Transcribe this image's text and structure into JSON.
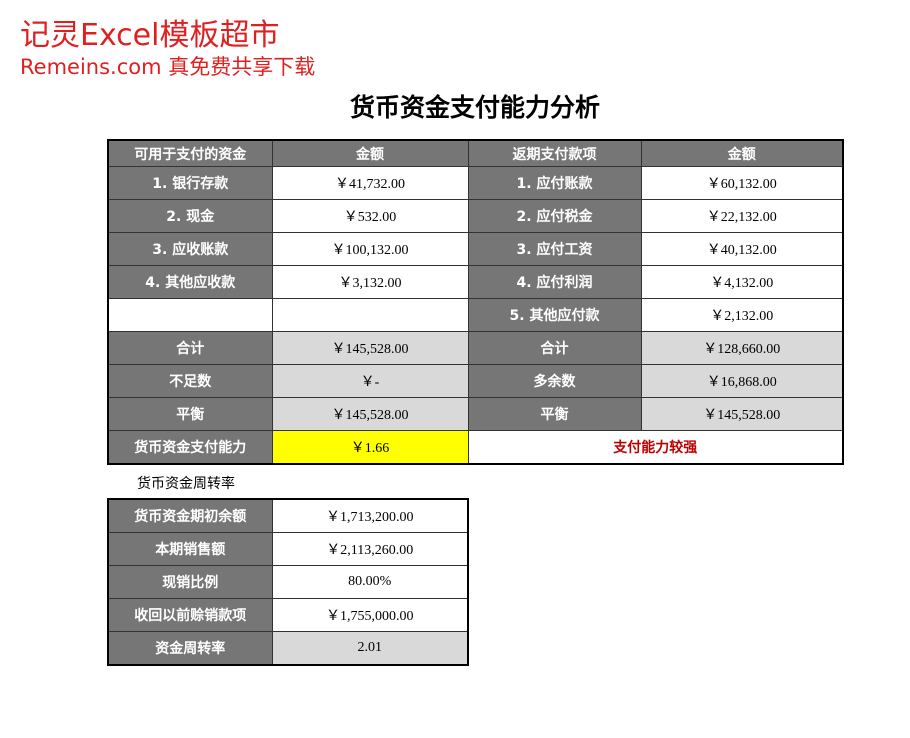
{
  "watermark": {
    "line1": "记灵Excel模板超市",
    "line2": "Remeins.com 真免费共享下载"
  },
  "title": "货币资金支付能力分析",
  "table1": {
    "header": [
      "可用于支付的资金",
      "金额",
      "返期支付款项",
      "金额"
    ],
    "rows": [
      [
        "1. 银行存款",
        "￥41,732.00",
        "1. 应付账款",
        "￥60,132.00"
      ],
      [
        "2. 现金",
        "￥532.00",
        "2. 应付税金",
        "￥22,132.00"
      ],
      [
        "3. 应收账款",
        "￥100,132.00",
        "3. 应付工资",
        "￥40,132.00"
      ],
      [
        "4. 其他应收款",
        "￥3,132.00",
        "4. 应付利润",
        "￥4,132.00"
      ],
      [
        null,
        null,
        "5. 其他应付款",
        "￥2,132.00"
      ],
      [
        "合计",
        "￥145,528.00",
        "合计",
        "￥128,660.00"
      ],
      [
        "不足数",
        "￥-",
        "多余数",
        "￥16,868.00"
      ],
      [
        "平衡",
        "￥145,528.00",
        "平衡",
        "￥145,528.00"
      ],
      [
        "货币资金支付能力",
        "￥1.66",
        "支付能力较强"
      ]
    ]
  },
  "section2_label": "货币资金周转率",
  "table2": {
    "rows": [
      [
        "货币资金期初余额",
        "￥1,713,200.00"
      ],
      [
        "本期销售额",
        "￥2,113,260.00"
      ],
      [
        "现销比例",
        "80.00%"
      ],
      [
        "收回以前赊销款项",
        "￥1,755,000.00"
      ],
      [
        "资金周转率",
        "2.01"
      ]
    ]
  }
}
